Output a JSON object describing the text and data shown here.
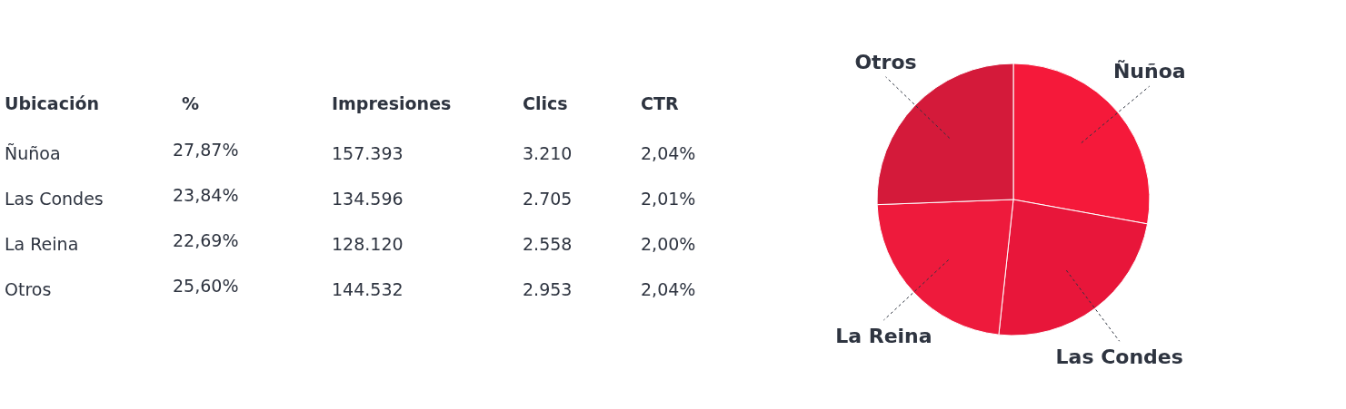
{
  "chart_data": [
    {
      "type": "other",
      "xlabel": "Ubicación",
      "categories": [
        "Ñuñoa",
        "Las Condes",
        "La Reina",
        "Otros"
      ],
      "series": [
        {
          "name": "%",
          "values": [
            27.87,
            23.84,
            22.69,
            25.6
          ],
          "value_labels": [
            "27,87%",
            "23,84%",
            "22,69%",
            "25,60%"
          ]
        },
        {
          "name": "Impresiones",
          "values": [
            157393,
            134596,
            128120,
            144532
          ],
          "value_labels": [
            "157.393",
            "134.596",
            "128.120",
            "144.532"
          ]
        },
        {
          "name": "Clics",
          "values": [
            3210,
            2705,
            2558,
            2953
          ],
          "value_labels": [
            "3.210",
            "2.705",
            "2.558",
            "2.953"
          ]
        },
        {
          "name": "CTR",
          "values": [
            2.04,
            2.01,
            2.0,
            2.04
          ],
          "value_labels": [
            "2,04%",
            "2,01%",
            "2,00%",
            "2,04%"
          ]
        }
      ]
    },
    {
      "type": "pie",
      "categories": [
        "Ñuñoa",
        "Las Condes",
        "La Reina",
        "Otros"
      ],
      "values": [
        27.87,
        23.84,
        22.69,
        25.6
      ],
      "colors": [
        "#f5193a",
        "#e8163a",
        "#ee1a3c",
        "#d41a3a"
      ]
    }
  ]
}
